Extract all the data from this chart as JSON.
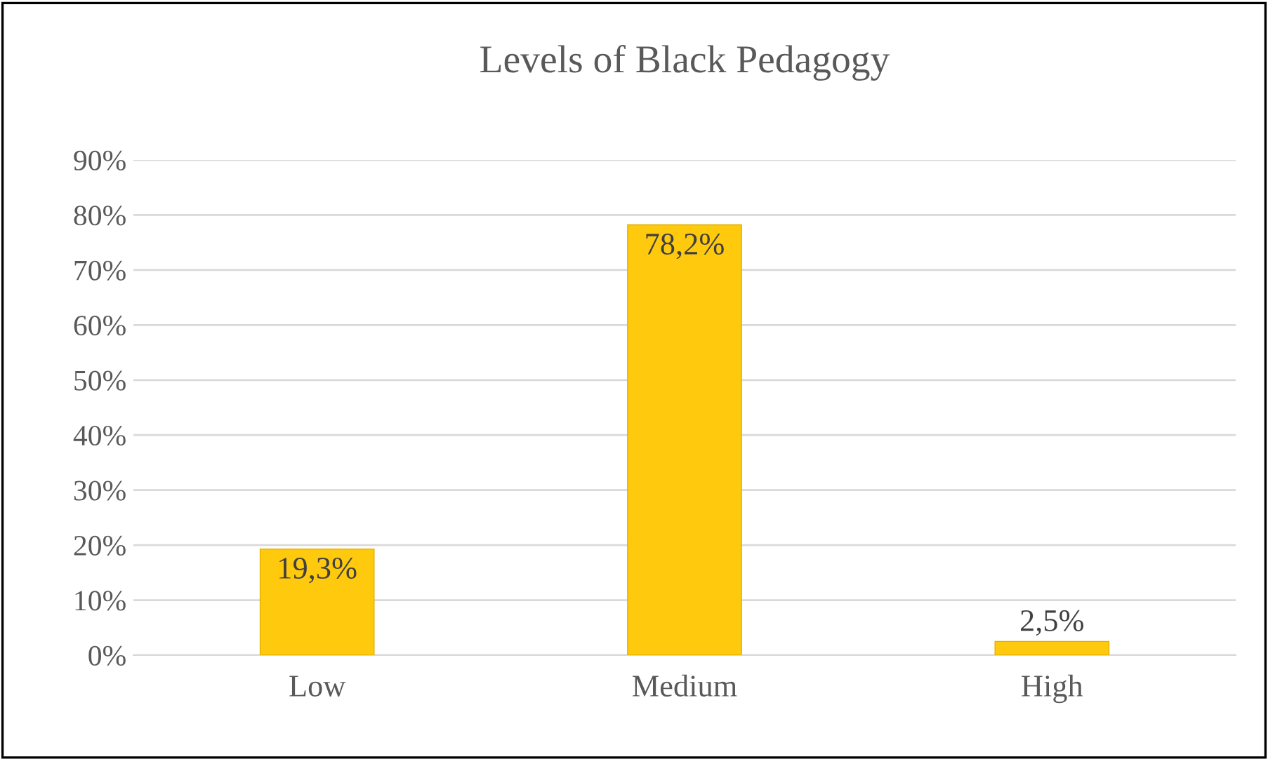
{
  "chart_data": {
    "type": "bar",
    "title": "Levels of Black Pedagogy",
    "categories": [
      "Low",
      "Medium",
      "High"
    ],
    "values": [
      19.3,
      78.2,
      2.5
    ],
    "value_labels": [
      "19,3%",
      "78,2%",
      "2,5%"
    ],
    "color": "#ffc90e",
    "ylim": [
      0,
      90
    ],
    "yticks": [
      {
        "value": 0,
        "label": "0%"
      },
      {
        "value": 10,
        "label": "10%"
      },
      {
        "value": 20,
        "label": "20%"
      },
      {
        "value": 30,
        "label": "30%"
      },
      {
        "value": 40,
        "label": "40%"
      },
      {
        "value": 50,
        "label": "50%"
      },
      {
        "value": 60,
        "label": "60%"
      },
      {
        "value": 70,
        "label": "70%"
      },
      {
        "value": 80,
        "label": "80%"
      },
      {
        "value": 90,
        "label": "90%"
      }
    ],
    "grid": "y",
    "legend": false
  }
}
